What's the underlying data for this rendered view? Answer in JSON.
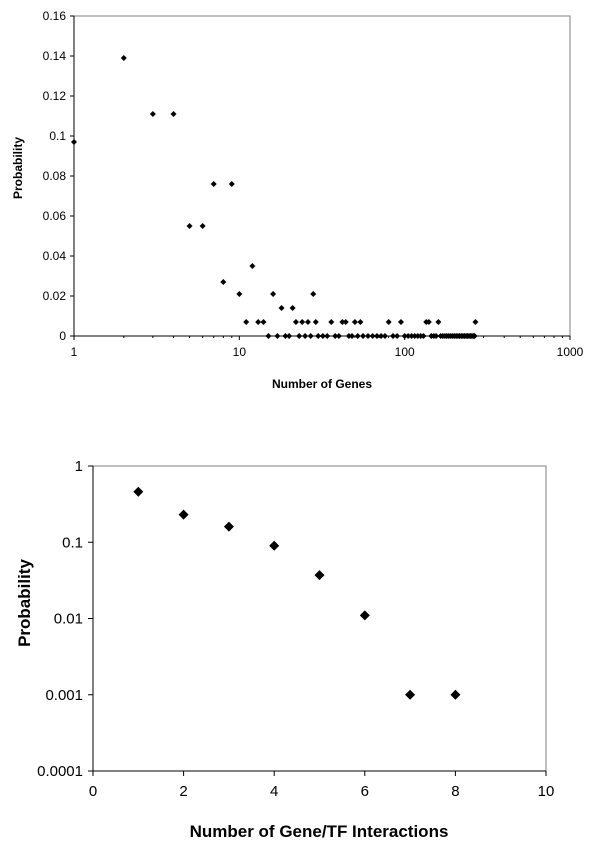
{
  "chart_data": [
    {
      "type": "scatter",
      "xlabel": "Number of Genes",
      "ylabel": "Probability",
      "xscale": "log",
      "xlim": [
        1,
        1000
      ],
      "ylim": [
        0,
        0.16
      ],
      "xticks": [
        "1",
        "10",
        "100",
        "1000"
      ],
      "yticks": [
        "0",
        "0.02",
        "0.04",
        "0.06",
        "0.08",
        "0.1",
        "0.12",
        "0.14",
        "0.16"
      ],
      "grid": false,
      "legend": "none",
      "marker_color": "#000000",
      "points": [
        [
          1,
          0.097
        ],
        [
          2,
          0.139
        ],
        [
          3,
          0.111
        ],
        [
          4,
          0.111
        ],
        [
          5,
          0.055
        ],
        [
          6,
          0.055
        ],
        [
          7,
          0.076
        ],
        [
          8,
          0.027
        ],
        [
          9,
          0.076
        ],
        [
          10,
          0.021
        ],
        [
          11,
          0.007
        ],
        [
          12,
          0.035
        ],
        [
          13,
          0.007
        ],
        [
          14,
          0.007
        ],
        [
          15,
          0
        ],
        [
          16,
          0.021
        ],
        [
          17,
          0
        ],
        [
          18,
          0.014
        ],
        [
          19,
          0
        ],
        [
          20,
          0
        ],
        [
          21,
          0.014
        ],
        [
          22,
          0.007
        ],
        [
          23,
          0
        ],
        [
          24,
          0.007
        ],
        [
          25,
          0
        ],
        [
          26,
          0.007
        ],
        [
          27,
          0
        ],
        [
          28,
          0.021
        ],
        [
          29,
          0.007
        ],
        [
          30,
          0
        ],
        [
          32,
          0
        ],
        [
          34,
          0
        ],
        [
          36,
          0.007
        ],
        [
          38,
          0
        ],
        [
          40,
          0
        ],
        [
          42,
          0.007
        ],
        [
          44,
          0.007
        ],
        [
          46,
          0
        ],
        [
          48,
          0
        ],
        [
          50,
          0.007
        ],
        [
          52,
          0
        ],
        [
          54,
          0.007
        ],
        [
          56,
          0
        ],
        [
          60,
          0
        ],
        [
          64,
          0
        ],
        [
          68,
          0
        ],
        [
          72,
          0
        ],
        [
          76,
          0
        ],
        [
          80,
          0.007
        ],
        [
          85,
          0
        ],
        [
          90,
          0
        ],
        [
          95,
          0.007
        ],
        [
          100,
          0
        ],
        [
          105,
          0
        ],
        [
          110,
          0
        ],
        [
          115,
          0
        ],
        [
          120,
          0
        ],
        [
          125,
          0
        ],
        [
          130,
          0
        ],
        [
          135,
          0.007
        ],
        [
          140,
          0.007
        ],
        [
          145,
          0
        ],
        [
          150,
          0
        ],
        [
          155,
          0
        ],
        [
          160,
          0.007
        ],
        [
          165,
          0
        ],
        [
          170,
          0
        ],
        [
          175,
          0
        ],
        [
          180,
          0
        ],
        [
          185,
          0
        ],
        [
          190,
          0
        ],
        [
          195,
          0
        ],
        [
          200,
          0
        ],
        [
          205,
          0
        ],
        [
          210,
          0
        ],
        [
          215,
          0
        ],
        [
          220,
          0
        ],
        [
          225,
          0
        ],
        [
          230,
          0
        ],
        [
          235,
          0
        ],
        [
          240,
          0
        ],
        [
          245,
          0
        ],
        [
          250,
          0
        ],
        [
          255,
          0
        ],
        [
          260,
          0
        ],
        [
          265,
          0
        ],
        [
          268,
          0.007
        ]
      ]
    },
    {
      "type": "scatter",
      "xlabel": "Number of Gene/TF Interactions",
      "ylabel": "Probability",
      "yscale": "log",
      "xlim": [
        0,
        10
      ],
      "ylim": [
        0.0001,
        1
      ],
      "xticks": [
        "0",
        "2",
        "4",
        "6",
        "8",
        "10"
      ],
      "yticks": [
        "0.0001",
        "0.001",
        "0.01",
        "0.1",
        "1"
      ],
      "grid": false,
      "legend": "none",
      "marker_color": "#000000",
      "points": [
        [
          1,
          0.46
        ],
        [
          2,
          0.23
        ],
        [
          3,
          0.16
        ],
        [
          4,
          0.09
        ],
        [
          5,
          0.037
        ],
        [
          6,
          0.011
        ],
        [
          7,
          0.001
        ],
        [
          8,
          0.001
        ]
      ]
    }
  ]
}
